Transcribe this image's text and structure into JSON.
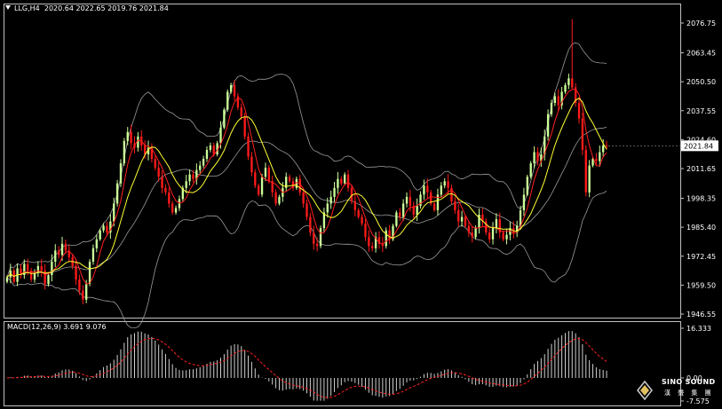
{
  "header": {
    "symbol": "LLG,H4",
    "ohlc": "2020.64 2022.65 2019.76 2021.84",
    "collapse_icon": "triangle-down-icon"
  },
  "macd_header": {
    "label": "MACD(12,26,9) 3.691 9.076"
  },
  "price_axis": {
    "ticks": [
      "2076.75",
      "2063.45",
      "2050.50",
      "2037.55",
      "2024.60",
      "2011.65",
      "1998.35",
      "1985.40",
      "1972.45",
      "1959.50",
      "1946.55"
    ],
    "current_price": "2021.84"
  },
  "macd_axis": {
    "ticks": [
      "16.333",
      "0.00",
      "-7.575"
    ]
  },
  "brand": {
    "name": "SINO SOUND",
    "subtitle": "漢 聲 集 團",
    "logo_icon": "diamond-logo-icon"
  },
  "colors": {
    "background": "#000000",
    "bull": "#ccff99",
    "bear": "#ff1a1a",
    "ma_fast": "#ff2020",
    "ma_slow": "#ffff33",
    "bollinger": "#9a9a9a",
    "macd_signal": "#ff2020",
    "macd_hist": "#d0d0d0",
    "frame": "#c0c0c0"
  },
  "chart_data": [
    {
      "type": "candlestick",
      "title": "LLG,H4",
      "ylim": [
        1946.55,
        2082
      ],
      "overlays": [
        "bollinger_bands",
        "moving_average_red",
        "moving_average_yellow"
      ],
      "closes": [
        1963,
        1966,
        1961,
        1967,
        1964,
        1969,
        1966,
        1962,
        1965,
        1968,
        1966,
        1960,
        1964,
        1970,
        1975,
        1973,
        1978,
        1975,
        1972,
        1968,
        1962,
        1957,
        1953,
        1960,
        1970,
        1976,
        1980,
        1984,
        1986,
        1983,
        1988,
        1996,
        2005,
        2014,
        2024,
        2028,
        2023,
        2021,
        2026,
        2022,
        2018,
        2021,
        2016,
        2012,
        2008,
        2003,
        2001,
        1996,
        1992,
        1994,
        1998,
        2003,
        2006,
        2009,
        2007,
        2011,
        2013,
        2016,
        2020,
        2022,
        2018,
        2023,
        2030,
        2038,
        2046,
        2049,
        2044,
        2039,
        2035,
        2026,
        2017,
        2010,
        2004,
        2000,
        2008,
        2012,
        2006,
        2001,
        1996,
        1999,
        2003,
        2008,
        2006,
        2003,
        2007,
        2001,
        1996,
        1990,
        1983,
        1978,
        1977,
        1985,
        1992,
        1996,
        1999,
        2003,
        2007,
        2005,
        2009,
        2003,
        1997,
        1993,
        1990,
        1987,
        1981,
        1977,
        1976,
        1981,
        1978,
        1977,
        1984,
        1980,
        1986,
        1992,
        1990,
        1996,
        1999,
        1995,
        1991,
        1995,
        2000,
        2004,
        2001,
        1996,
        1993,
        2000,
        2004,
        2006,
        2003,
        1997,
        1993,
        1988,
        1990,
        1986,
        1983,
        1981,
        1985,
        1991,
        1988,
        1983,
        1980,
        1985,
        1989,
        1983,
        1980,
        1982,
        1985,
        1983,
        1986,
        1993,
        2000,
        2008,
        2014,
        2019,
        2015,
        2018,
        2026,
        2036,
        2041,
        2044,
        2040,
        2046,
        2049,
        2052,
        2048,
        2041,
        2034,
        2020,
        2001,
        2013,
        2016,
        2015,
        2019,
        2022,
        2021.84
      ]
    },
    {
      "type": "bar",
      "title": "MACD(12,26,9)",
      "macd_last": 3.691,
      "signal_last": 9.076,
      "ylim": [
        -7.575,
        16.333
      ]
    }
  ]
}
